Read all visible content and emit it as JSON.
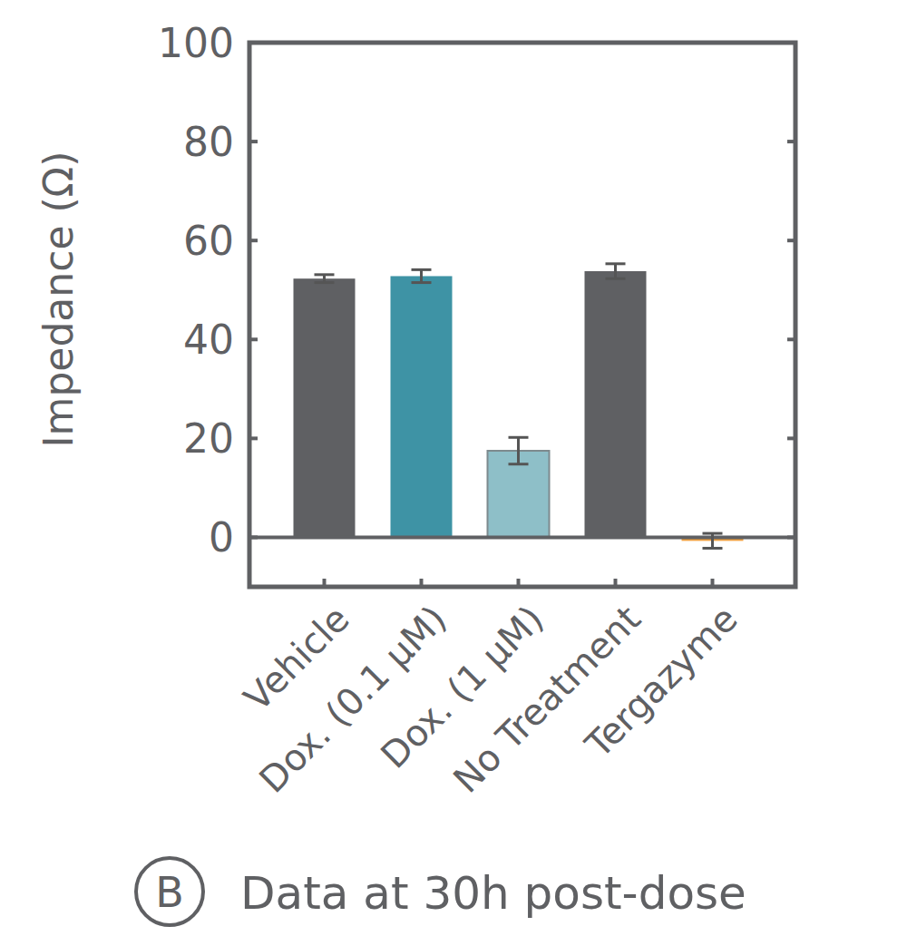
{
  "chart_data": {
    "type": "bar",
    "title": "Data at 30h post-dose",
    "panel_label": "B",
    "y_label": "Impedance (Ω)",
    "categories": [
      "Vehicle",
      "Dox. (0.1 μM)",
      "Dox. (1 μM)",
      "No Treatment",
      "Tergazyme"
    ],
    "values": [
      52.3,
      52.8,
      17.5,
      53.8,
      -0.7
    ],
    "errors": [
      0.8,
      1.3,
      2.7,
      1.5,
      1.5
    ],
    "colors": [
      "#5f6063",
      "#3e93a5",
      "#8ebfc8",
      "#5f6063",
      "#f0a040"
    ],
    "ylim": [
      -10,
      100
    ],
    "yticks": [
      0,
      20,
      40,
      60,
      80,
      100
    ],
    "grid": false
  }
}
